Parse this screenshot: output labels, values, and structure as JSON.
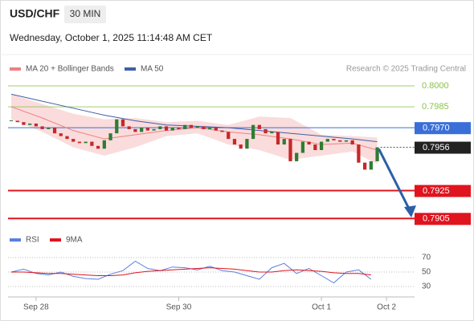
{
  "chart_data": {
    "type": "candlestick",
    "title": "USD/CHF",
    "interval": "30 MIN",
    "subtitle": "Wednesday, October 1, 2025 11:14:48 AM CET",
    "credit": "Research © 2025 Trading Central",
    "up_color": "#2e7d32",
    "down_color": "#c62828",
    "close": [
      0.7975,
      0.7974,
      0.7972,
      0.7973,
      0.7971,
      0.7969,
      0.797,
      0.7966,
      0.7964,
      0.7962,
      0.796,
      0.7959,
      0.796,
      0.7957,
      0.7955,
      0.7961,
      0.7966,
      0.7976,
      0.7971,
      0.7969,
      0.7967,
      0.797,
      0.7968,
      0.7969,
      0.7971,
      0.7968,
      0.797,
      0.7969,
      0.7972,
      0.797,
      0.7971,
      0.7969,
      0.797,
      0.7968,
      0.7967,
      0.7962,
      0.7958,
      0.7955,
      0.7962,
      0.7972,
      0.7969,
      0.7966,
      0.7967,
      0.7958,
      0.7962,
      0.7946,
      0.7952,
      0.796,
      0.7958,
      0.7954,
      0.796,
      0.7962,
      0.7961,
      0.796,
      0.7961,
      0.7958,
      0.7945,
      0.794,
      0.7946,
      0.7956
    ],
    "xlim": [
      0,
      61
    ],
    "ylim": [
      0.79,
      0.8004
    ],
    "xticks": [
      {
        "value": 4,
        "label": "Sep 28"
      },
      {
        "value": 27,
        "label": "Sep 30"
      },
      {
        "value": 50,
        "label": "Oct 1"
      },
      {
        "value": 60.5,
        "label": "Oct 2"
      }
    ],
    "indicators": [
      {
        "name": "MA 20 + Bollinger Bands",
        "color": "#f08080",
        "band_color": "#f9d3d3",
        "x": [
          0,
          5,
          10,
          15,
          20,
          25,
          30,
          35,
          40,
          45,
          50,
          55,
          59
        ],
        "values": [
          0.7985,
          0.7977,
          0.7968,
          0.7962,
          0.7965,
          0.7968,
          0.797,
          0.7967,
          0.7965,
          0.7962,
          0.7958,
          0.7959,
          0.7954
        ],
        "upper": [
          0.7994,
          0.7987,
          0.798,
          0.7976,
          0.7977,
          0.7974,
          0.7975,
          0.7972,
          0.7978,
          0.7977,
          0.7965,
          0.7964,
          0.7963
        ],
        "lower": [
          0.7976,
          0.7967,
          0.7956,
          0.795,
          0.7956,
          0.7964,
          0.7966,
          0.7958,
          0.7954,
          0.7947,
          0.795,
          0.7953,
          0.7944
        ]
      },
      {
        "name": "MA 50",
        "color": "#3f5fa8",
        "x": [
          0,
          5,
          10,
          15,
          20,
          25,
          30,
          35,
          40,
          45,
          50,
          55,
          59
        ],
        "values": [
          0.7994,
          0.7989,
          0.7984,
          0.7979,
          0.7975,
          0.7972,
          0.7971,
          0.797,
          0.7968,
          0.7966,
          0.7964,
          0.7962,
          0.796
        ]
      }
    ],
    "levels": [
      {
        "value": 0.8,
        "label": "0.8000",
        "color": "#8bc34a",
        "style": "text"
      },
      {
        "value": 0.7985,
        "label": "0.7985",
        "color": "#8bc34a",
        "style": "text"
      },
      {
        "value": 0.797,
        "label": "0.7970",
        "color": "#3a6fd8",
        "style": "box"
      },
      {
        "value": 0.7956,
        "label": "0.7956",
        "color": "#222222",
        "style": "dotted"
      },
      {
        "value": 0.7925,
        "label": "0.7925",
        "color": "#e0141e",
        "style": "box"
      },
      {
        "value": 0.7905,
        "label": "0.7905",
        "color": "#e0141e",
        "style": "box"
      }
    ],
    "rsi": {
      "ylim": [
        20,
        80
      ],
      "yticks": [
        30,
        50,
        70
      ],
      "x": [
        0,
        2,
        4,
        6,
        8,
        10,
        12,
        14,
        16,
        18,
        20,
        22,
        24,
        26,
        28,
        30,
        32,
        34,
        36,
        38,
        40,
        42,
        44,
        46,
        48,
        50,
        52,
        54,
        56,
        58
      ],
      "series": [
        {
          "name": "RSI",
          "color": "#5b7fe0",
          "values": [
            50,
            54,
            48,
            46,
            50,
            44,
            41,
            40,
            47,
            52,
            65,
            55,
            52,
            57,
            56,
            53,
            58,
            52,
            50,
            45,
            40,
            56,
            62,
            48,
            55,
            45,
            35,
            50,
            53,
            40
          ]
        },
        {
          "name": "9MA",
          "color": "#e0141e",
          "values": [
            50,
            50,
            49,
            48,
            48,
            47,
            46,
            45,
            45,
            46,
            49,
            51,
            52,
            53,
            54,
            55,
            56,
            55,
            54,
            52,
            50,
            50,
            52,
            53,
            52,
            51,
            49,
            48,
            48,
            46
          ]
        }
      ]
    }
  }
}
